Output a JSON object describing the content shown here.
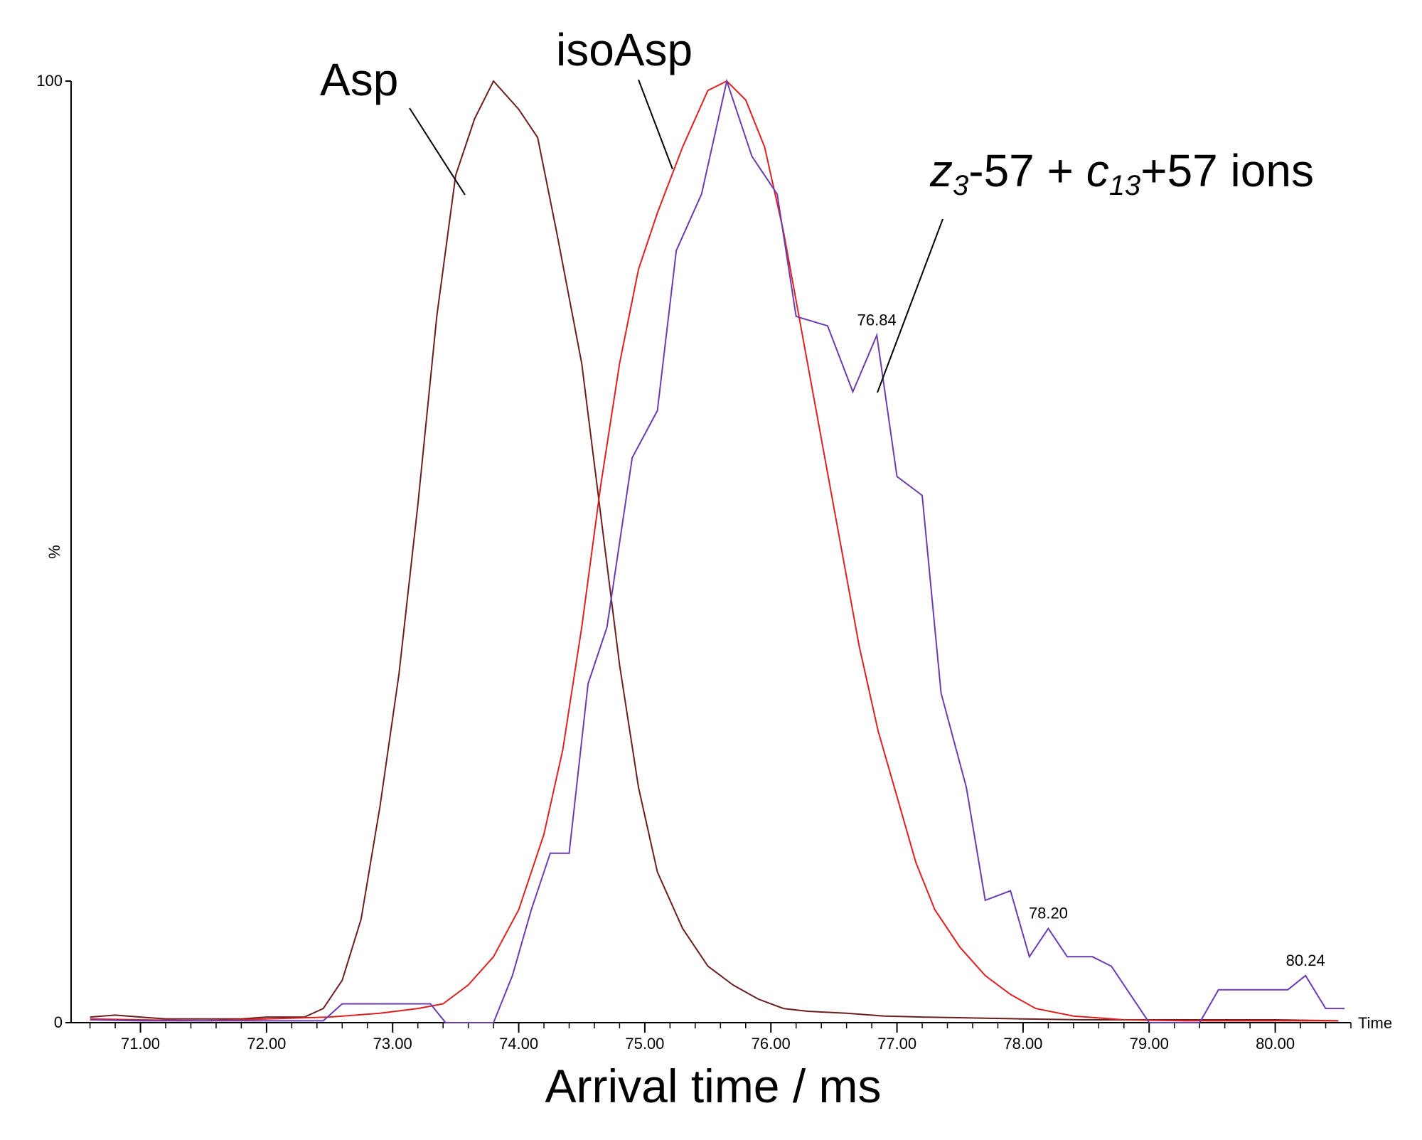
{
  "chart_data": {
    "type": "line",
    "title": "",
    "xlabel": "Arrival time / ms",
    "ylabel": "%",
    "axis_unit_label": "Time",
    "xlim": [
      70.45,
      80.6
    ],
    "ylim": [
      0,
      100
    ],
    "x_ticks": [
      "71.00",
      "72.00",
      "73.00",
      "74.00",
      "75.00",
      "76.00",
      "77.00",
      "78.00",
      "79.00",
      "80.00"
    ],
    "y_ticks": [
      "0",
      "100"
    ],
    "series": [
      {
        "name": "Asp",
        "color": "#6b1e1e",
        "points": [
          [
            70.6,
            0.6
          ],
          [
            70.8,
            0.8
          ],
          [
            71.0,
            0.6
          ],
          [
            71.2,
            0.4
          ],
          [
            71.5,
            0.4
          ],
          [
            71.8,
            0.4
          ],
          [
            72.0,
            0.6
          ],
          [
            72.3,
            0.6
          ],
          [
            72.45,
            1.5
          ],
          [
            72.6,
            4.5
          ],
          [
            72.75,
            11
          ],
          [
            72.9,
            23
          ],
          [
            73.05,
            37
          ],
          [
            73.2,
            55
          ],
          [
            73.35,
            75
          ],
          [
            73.5,
            90
          ],
          [
            73.65,
            96
          ],
          [
            73.8,
            100
          ],
          [
            74.0,
            97
          ],
          [
            74.15,
            94
          ],
          [
            74.3,
            84
          ],
          [
            74.5,
            70
          ],
          [
            74.65,
            54
          ],
          [
            74.8,
            38
          ],
          [
            74.95,
            25
          ],
          [
            75.1,
            16
          ],
          [
            75.3,
            10
          ],
          [
            75.5,
            6
          ],
          [
            75.7,
            4
          ],
          [
            75.9,
            2.5
          ],
          [
            76.1,
            1.5
          ],
          [
            76.3,
            1.2
          ],
          [
            76.6,
            1
          ],
          [
            76.9,
            0.7
          ],
          [
            77.2,
            0.6
          ],
          [
            77.6,
            0.5
          ],
          [
            78.0,
            0.4
          ],
          [
            78.5,
            0.3
          ],
          [
            79.0,
            0.3
          ],
          [
            79.5,
            0.3
          ],
          [
            80.0,
            0.3
          ],
          [
            80.5,
            0.2
          ]
        ]
      },
      {
        "name": "isoAsp",
        "color": "#e02020",
        "points": [
          [
            70.6,
            0.4
          ],
          [
            71.0,
            0.3
          ],
          [
            71.5,
            0.2
          ],
          [
            72.0,
            0.4
          ],
          [
            72.5,
            0.6
          ],
          [
            72.9,
            1
          ],
          [
            73.2,
            1.5
          ],
          [
            73.4,
            2
          ],
          [
            73.6,
            4
          ],
          [
            73.8,
            7
          ],
          [
            74.0,
            12
          ],
          [
            74.2,
            20
          ],
          [
            74.35,
            29
          ],
          [
            74.5,
            42
          ],
          [
            74.65,
            57
          ],
          [
            74.8,
            70
          ],
          [
            74.95,
            80
          ],
          [
            75.1,
            86
          ],
          [
            75.3,
            93
          ],
          [
            75.5,
            99
          ],
          [
            75.65,
            100
          ],
          [
            75.8,
            98
          ],
          [
            75.95,
            93
          ],
          [
            76.1,
            84
          ],
          [
            76.25,
            73
          ],
          [
            76.4,
            62
          ],
          [
            76.55,
            51
          ],
          [
            76.7,
            40
          ],
          [
            76.85,
            31
          ],
          [
            77.0,
            24
          ],
          [
            77.15,
            17
          ],
          [
            77.3,
            12
          ],
          [
            77.5,
            8
          ],
          [
            77.7,
            5
          ],
          [
            77.9,
            3
          ],
          [
            78.1,
            1.5
          ],
          [
            78.4,
            0.7
          ],
          [
            78.8,
            0.3
          ],
          [
            79.3,
            0.2
          ],
          [
            80.0,
            0.2
          ],
          [
            80.5,
            0.2
          ]
        ]
      },
      {
        "name": "z3-57 + c13+57 ions",
        "color": "#6a3cb0",
        "points": [
          [
            70.6,
            0.3
          ],
          [
            71.0,
            0.2
          ],
          [
            72.0,
            0.2
          ],
          [
            72.45,
            0.2
          ],
          [
            72.6,
            2
          ],
          [
            73.0,
            2
          ],
          [
            73.3,
            2
          ],
          [
            73.42,
            0
          ],
          [
            73.8,
            0
          ],
          [
            73.95,
            5
          ],
          [
            74.1,
            12
          ],
          [
            74.25,
            18
          ],
          [
            74.4,
            18
          ],
          [
            74.55,
            36
          ],
          [
            74.7,
            42
          ],
          [
            74.9,
            60
          ],
          [
            75.1,
            65
          ],
          [
            75.25,
            82
          ],
          [
            75.45,
            88
          ],
          [
            75.65,
            100
          ],
          [
            75.85,
            92
          ],
          [
            76.05,
            88
          ],
          [
            76.2,
            75
          ],
          [
            76.45,
            74
          ],
          [
            76.65,
            67
          ],
          [
            76.84,
            73
          ],
          [
            77.0,
            58
          ],
          [
            77.2,
            56
          ],
          [
            77.35,
            35
          ],
          [
            77.55,
            25
          ],
          [
            77.7,
            13
          ],
          [
            77.9,
            14
          ],
          [
            78.05,
            7
          ],
          [
            78.2,
            10
          ],
          [
            78.35,
            7
          ],
          [
            78.55,
            7
          ],
          [
            78.7,
            6
          ],
          [
            78.85,
            3
          ],
          [
            79.0,
            0
          ],
          [
            79.2,
            0
          ],
          [
            79.4,
            0
          ],
          [
            79.55,
            3.5
          ],
          [
            79.8,
            3.5
          ],
          [
            80.1,
            3.5
          ],
          [
            80.24,
            5
          ],
          [
            80.4,
            1.5
          ],
          [
            80.55,
            1.5
          ]
        ]
      }
    ],
    "peak_labels": [
      {
        "x": 76.84,
        "y": 73,
        "text": "76.84"
      },
      {
        "x": 78.2,
        "y": 10,
        "text": "78.20"
      },
      {
        "x": 80.24,
        "y": 5,
        "text": "80.24"
      }
    ],
    "annotations": {
      "asp": "Asp",
      "isoasp": "isoAsp",
      "ions_z": "z",
      "ions_z_sub": "3",
      "ions_mid": "-57 + ",
      "ions_c": "c",
      "ions_c_sub": "13",
      "ions_end": "+57 ions"
    }
  }
}
